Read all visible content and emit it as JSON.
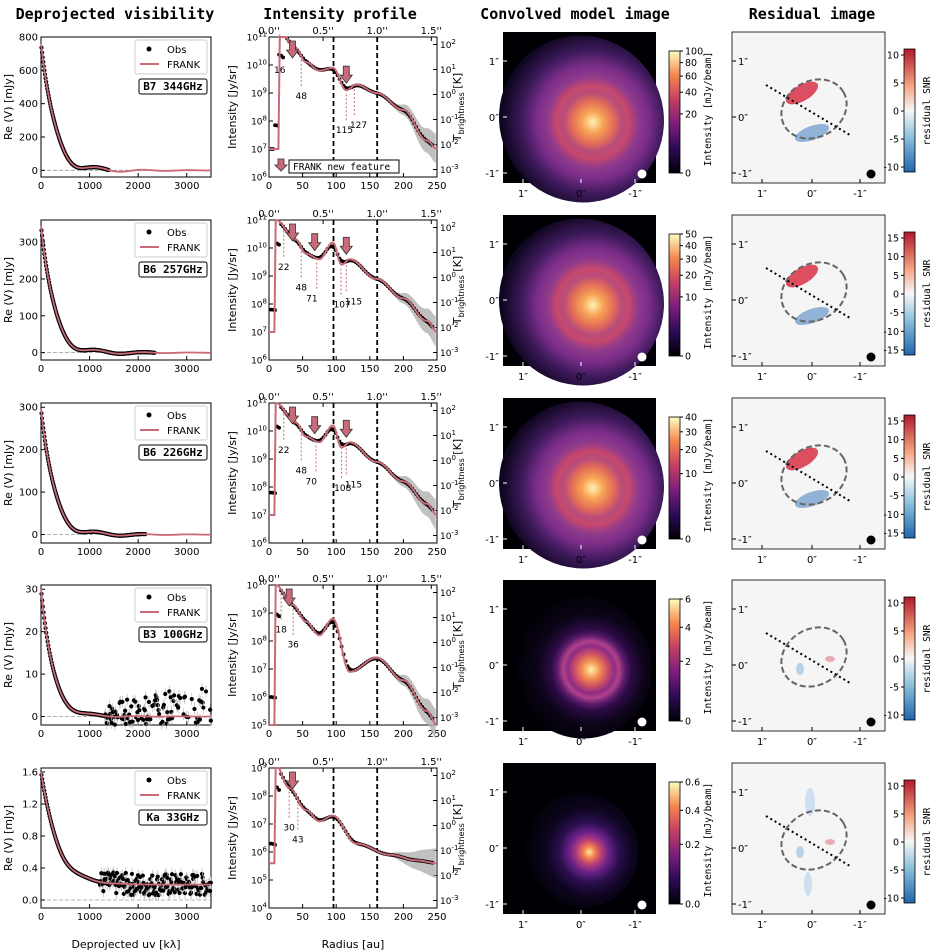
{
  "columns": [
    "Deprojected visibility",
    "Intensity profile",
    "Convolved model image",
    "Residual image"
  ],
  "legend": {
    "obs": "Obs",
    "frank": "FRANK"
  },
  "annotation_new_feature": "FRANK new feature",
  "labels": {
    "vis_y": "Re (V) [mJy]",
    "vis_x": "Deprojected uv [kλ]",
    "prof_y": "Intensity [Jy/sr]",
    "prof_x": "Radius [au]",
    "prof_y2": "T",
    "prof_y2_sub": "brightness",
    "prof_y2_unit": " [K]",
    "img_cb": "Intensity [mJy/beam]",
    "res_cb": "residual SNR"
  },
  "arcsec_ticks": [
    "0.0''",
    "0.5''",
    "1.0''",
    "1.5''"
  ],
  "sky_ticks_x": [
    "1″",
    "0″",
    "-1″"
  ],
  "sky_ticks_y": [
    "1″",
    "0″",
    "-1″"
  ],
  "chart_data": [
    {
      "type": "scatter",
      "band": "B7 344GHz",
      "vis": {
        "xlim": [
          0,
          3500
        ],
        "ylim": [
          -40,
          800
        ],
        "yticks": [
          "0",
          "200",
          "400",
          "600",
          "800"
        ],
        "xticks": [
          "0",
          "1000",
          "2000",
          "3000"
        ]
      },
      "prof": {
        "yexp_min": 6,
        "yexp_max": 11,
        "t_min": -3,
        "t_max": 2,
        "peaks": [
          {
            "x": 15,
            "y": 11.25
          },
          {
            "x": 40,
            "y": 10.6
          },
          {
            "x": 55,
            "y": 10.1
          },
          {
            "x": 75,
            "y": 9.8
          },
          {
            "x": 95,
            "y": 9.9
          },
          {
            "x": 115,
            "y": 9.1
          },
          {
            "x": 130,
            "y": 9.3
          },
          {
            "x": 160,
            "y": 9.0
          },
          {
            "x": 200,
            "y": 8.4
          },
          {
            "x": 235,
            "y": 7.3
          },
          {
            "x": 250,
            "y": 7.0
          }
        ],
        "gaps": [
          "16",
          "48",
          "115",
          "127"
        ],
        "arrows": [
          35,
          115
        ]
      },
      "img_cb": {
        "ticks": [
          "0",
          "20",
          "40",
          "60",
          "80",
          "100"
        ]
      },
      "res_cb": {
        "ticks": [
          "-10",
          "-5",
          "0",
          "5",
          "10"
        ]
      }
    },
    {
      "type": "scatter",
      "band": "B6 257GHz",
      "vis": {
        "xlim": [
          0,
          3500
        ],
        "ylim": [
          -20,
          360
        ],
        "yticks": [
          "0",
          "100",
          "200",
          "300"
        ],
        "xticks": [
          "0",
          "1000",
          "2000",
          "3000"
        ]
      },
      "prof": {
        "yexp_min": 6,
        "yexp_max": 11,
        "t_min": -3,
        "t_max": 2,
        "peaks": [
          {
            "x": 10,
            "y": 11.0
          },
          {
            "x": 40,
            "y": 10.3
          },
          {
            "x": 55,
            "y": 9.8
          },
          {
            "x": 75,
            "y": 9.6
          },
          {
            "x": 95,
            "y": 10.2
          },
          {
            "x": 108,
            "y": 9.4
          },
          {
            "x": 120,
            "y": 9.6
          },
          {
            "x": 160,
            "y": 8.9
          },
          {
            "x": 200,
            "y": 8.2
          },
          {
            "x": 235,
            "y": 7.4
          },
          {
            "x": 250,
            "y": 7.0
          }
        ],
        "gaps": [
          "22",
          "48",
          "71",
          "107",
          "115"
        ],
        "arrows": [
          35,
          68,
          115
        ]
      },
      "img_cb": {
        "ticks": [
          "0",
          "10",
          "20",
          "30",
          "40",
          "50"
        ]
      },
      "res_cb": {
        "ticks": [
          "-15",
          "-10",
          "-5",
          "0",
          "5",
          "10",
          "15"
        ]
      }
    },
    {
      "type": "scatter",
      "band": "B6 226GHz",
      "vis": {
        "xlim": [
          0,
          3500
        ],
        "ylim": [
          -20,
          310
        ],
        "yticks": [
          "0",
          "100",
          "200",
          "300"
        ],
        "xticks": [
          "0",
          "1000",
          "2000",
          "3000"
        ]
      },
      "prof": {
        "yexp_min": 6,
        "yexp_max": 11,
        "t_min": -3,
        "t_max": 2,
        "peaks": [
          {
            "x": 10,
            "y": 11.0
          },
          {
            "x": 40,
            "y": 10.3
          },
          {
            "x": 55,
            "y": 9.8
          },
          {
            "x": 75,
            "y": 9.6
          },
          {
            "x": 95,
            "y": 10.2
          },
          {
            "x": 108,
            "y": 9.4
          },
          {
            "x": 120,
            "y": 9.6
          },
          {
            "x": 160,
            "y": 8.9
          },
          {
            "x": 200,
            "y": 8.2
          },
          {
            "x": 235,
            "y": 7.4
          },
          {
            "x": 250,
            "y": 7.0
          }
        ],
        "gaps": [
          "22",
          "48",
          "70",
          "108",
          "115"
        ],
        "arrows": [
          35,
          68,
          115
        ]
      },
      "img_cb": {
        "ticks": [
          "0",
          "10",
          "20",
          "30",
          "40"
        ]
      },
      "res_cb": {
        "ticks": [
          "-15",
          "-10",
          "-5",
          "0",
          "5",
          "10",
          "15"
        ]
      }
    },
    {
      "type": "scatter",
      "band": "B3 100GHz",
      "vis": {
        "xlim": [
          0,
          3500
        ],
        "ylim": [
          -2,
          31
        ],
        "yticks": [
          "0",
          "10",
          "20",
          "30"
        ],
        "xticks": [
          "0",
          "1000",
          "2000",
          "3000"
        ]
      },
      "prof": {
        "yexp_min": 5,
        "yexp_max": 10,
        "t_min": -3,
        "t_max": 2,
        "peaks": [
          {
            "x": 10,
            "y": 10.0
          },
          {
            "x": 35,
            "y": 9.3
          },
          {
            "x": 55,
            "y": 8.7
          },
          {
            "x": 75,
            "y": 8.2
          },
          {
            "x": 95,
            "y": 8.8
          },
          {
            "x": 120,
            "y": 6.9
          },
          {
            "x": 160,
            "y": 7.4
          },
          {
            "x": 200,
            "y": 6.6
          },
          {
            "x": 235,
            "y": 5.5
          },
          {
            "x": 250,
            "y": 5.0
          }
        ],
        "gaps": [
          "18",
          "36"
        ],
        "arrows": [
          30
        ]
      },
      "img_cb": {
        "ticks": [
          "0",
          "2",
          "4",
          "6"
        ]
      },
      "res_cb": {
        "ticks": [
          "-10",
          "-5",
          "0",
          "5",
          "10"
        ]
      }
    },
    {
      "type": "scatter",
      "band": "Ka 33GHz",
      "vis": {
        "xlim": [
          0,
          3500
        ],
        "ylim": [
          -0.1,
          1.65
        ],
        "yticks": [
          "0.0",
          "0.4",
          "0.8",
          "1.2",
          "1.6"
        ],
        "xticks": [
          "0",
          "1000",
          "2000",
          "3000"
        ]
      },
      "prof": {
        "yexp_min": 4,
        "yexp_max": 9,
        "t_min": -3,
        "t_max": 2,
        "peaks": [
          {
            "x": 10,
            "y": 9.1
          },
          {
            "x": 30,
            "y": 8.3
          },
          {
            "x": 55,
            "y": 7.5
          },
          {
            "x": 75,
            "y": 7.1
          },
          {
            "x": 95,
            "y": 7.3
          },
          {
            "x": 130,
            "y": 6.3
          },
          {
            "x": 180,
            "y": 5.9
          },
          {
            "x": 220,
            "y": 5.7
          },
          {
            "x": 250,
            "y": 5.6
          }
        ],
        "gaps": [
          "30",
          "43"
        ],
        "arrows": [
          35
        ]
      },
      "img_cb": {
        "ticks": [
          "0.0",
          "0.2",
          "0.4",
          "0.6"
        ]
      },
      "res_cb": {
        "ticks": [
          "-10",
          "-5",
          "0",
          "5",
          "10"
        ]
      }
    }
  ]
}
